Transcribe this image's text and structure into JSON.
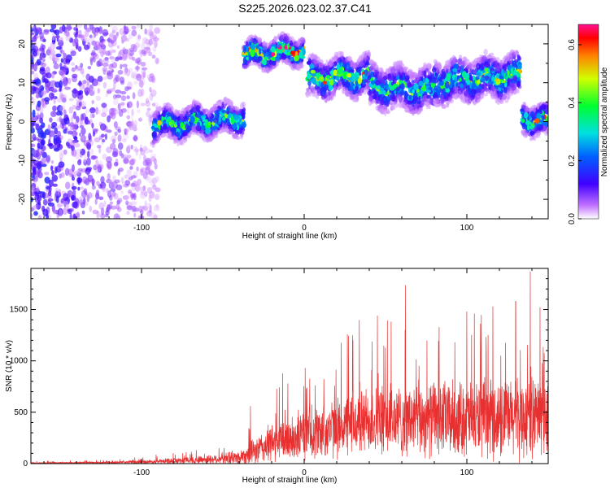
{
  "title": "S225.2026.023.02.37.C41",
  "chart_data": [
    {
      "type": "heatmap",
      "xlabel": "Height of straight line (km)",
      "ylabel": "Frequency (Hz)",
      "xlim": [
        -168,
        150
      ],
      "ylim": [
        -25,
        25
      ],
      "xticks": [
        -100,
        0,
        100
      ],
      "xtick_labels": [
        "-100",
        "0",
        "100"
      ],
      "yticks": [
        -20,
        -10,
        0,
        10,
        20
      ],
      "ytick_labels": [
        "-20",
        "-10",
        "0",
        "10",
        "20"
      ],
      "colorbar": {
        "label": "Normalized spectral amplitude",
        "range": [
          0.0,
          0.67
        ],
        "ticks": [
          0.0,
          0.2,
          0.4,
          0.6
        ],
        "tick_labels": [
          "0.0",
          "0.2",
          "0.4",
          "0.6"
        ]
      },
      "track_segments": [
        {
          "x_start": -93,
          "x_end": -37,
          "center_y_start": -1,
          "center_y_end": 1,
          "width_hz": 8,
          "peak": 0.45
        },
        {
          "x_start": -37,
          "x_end": 0,
          "center_y_start": 17,
          "center_y_end": 18.5,
          "width_hz": 7,
          "peak": 0.65
        },
        {
          "x_start": 2,
          "x_end": 40,
          "center_y_start": 11,
          "center_y_end": 12,
          "width_hz": 10,
          "peak": 0.5
        },
        {
          "x_start": 40,
          "x_end": 80,
          "center_y_start": 9,
          "center_y_end": 8,
          "width_hz": 11,
          "peak": 0.4
        },
        {
          "x_start": 80,
          "x_end": 133,
          "center_y_start": 10,
          "center_y_end": 12,
          "width_hz": 11,
          "peak": 0.45
        },
        {
          "x_start": 134,
          "x_end": 150,
          "center_y_start": 1,
          "center_y_end": 0,
          "width_hz": 8,
          "peak": 0.5
        }
      ],
      "noise_region": {
        "x_start": -168,
        "x_end": -90,
        "y_range": [
          -25,
          25
        ],
        "level": 0.12
      }
    },
    {
      "type": "line",
      "xlabel": "Height of straight line (km)",
      "ylabel": "SNR (10 * v/v)",
      "xlim": [
        -168,
        150
      ],
      "ylim": [
        0,
        1900
      ],
      "xticks": [
        -100,
        0,
        100
      ],
      "xtick_labels": [
        "-100",
        "0",
        "100"
      ],
      "yticks": [
        0,
        500,
        1000,
        1500
      ],
      "ytick_labels": [
        "0",
        "500",
        "1000",
        "1500"
      ],
      "color": "#e83030",
      "envelope": {
        "x": [
          -168,
          -120,
          -90,
          -60,
          -40,
          -30,
          -20,
          0,
          20,
          40,
          60,
          80,
          100,
          120,
          140,
          150
        ],
        "base": [
          5,
          10,
          20,
          40,
          60,
          120,
          200,
          280,
          350,
          420,
          420,
          440,
          440,
          430,
          450,
          480
        ],
        "spread": [
          8,
          12,
          25,
          50,
          80,
          150,
          220,
          280,
          330,
          380,
          400,
          420,
          420,
          430,
          450,
          450
        ]
      },
      "peaks": [
        {
          "x": -33,
          "y": 560
        },
        {
          "x": -10,
          "y": 780
        },
        {
          "x": 30,
          "y": 1200
        },
        {
          "x": 45,
          "y": 1440
        },
        {
          "x": 62,
          "y": 1300
        },
        {
          "x": 83,
          "y": 1330
        },
        {
          "x": 100,
          "y": 1480
        },
        {
          "x": 116,
          "y": 1530
        },
        {
          "x": 130,
          "y": 1580
        },
        {
          "x": 139,
          "y": 1870
        },
        {
          "x": 145,
          "y": 1520
        }
      ]
    }
  ]
}
